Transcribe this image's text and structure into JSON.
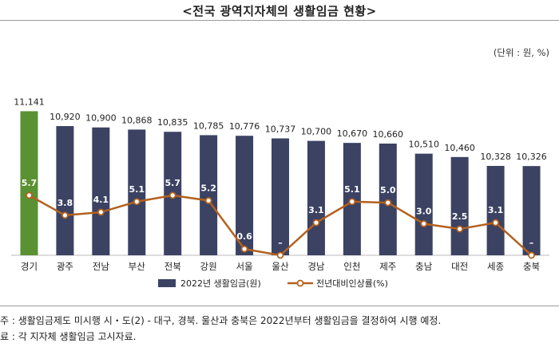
{
  "title": "<전국 광역지자체의 생활임금 현황>",
  "unit": "(단위 : 원, %)",
  "notes": {
    "line1": "주 : 생활임금제도 미시행 시・도(2) - 대구, 경북. 울산과 충북은 2022년부터 생활임금을 결정하여 시행 예정.",
    "line2": "료 : 각 지자체 생활임금 고시자료."
  },
  "colors": {
    "bar": "#3b4262",
    "bar_highlight": "#5a9133",
    "line": "#b3611f",
    "marker_fill": "#ffffff"
  },
  "chart_data": {
    "type": "bar",
    "categories": [
      "경기",
      "광주",
      "전남",
      "부산",
      "전북",
      "강원",
      "서울",
      "울산",
      "경남",
      "인천",
      "제주",
      "충남",
      "대전",
      "세종",
      "충북"
    ],
    "series": [
      {
        "name": "2022년 생활임금(원)",
        "type": "bar",
        "values": [
          11141,
          10920,
          10900,
          10868,
          10835,
          10785,
          10776,
          10737,
          10700,
          10670,
          10660,
          10510,
          10460,
          10328,
          10326
        ],
        "labels": [
          "11,141",
          "10,920",
          "10,900",
          "10,868",
          "10,835",
          "10,785",
          "10,776",
          "10,737",
          "10,700",
          "10,670",
          "10,660",
          "10,510",
          "10,460",
          "10,328",
          "10,326"
        ]
      },
      {
        "name": "전년대비인상률(%)",
        "type": "line",
        "values": [
          5.7,
          3.8,
          4.1,
          5.1,
          5.7,
          5.2,
          0.6,
          0,
          3.1,
          5.1,
          5.0,
          3.0,
          2.5,
          3.1,
          0
        ],
        "labels": [
          "5.7",
          "3.8",
          "4.1",
          "5.1",
          "5.7",
          "5.2",
          "0.6",
          "–",
          "3.1",
          "5.1",
          "5.0",
          "3.0",
          "2.5",
          "3.1",
          "–"
        ]
      }
    ],
    "highlight_index": 0,
    "ylim_bar": [
      9000,
      11300
    ],
    "ylim_line": [
      0,
      11
    ],
    "grid": false,
    "legend_position": "bottom-center"
  }
}
